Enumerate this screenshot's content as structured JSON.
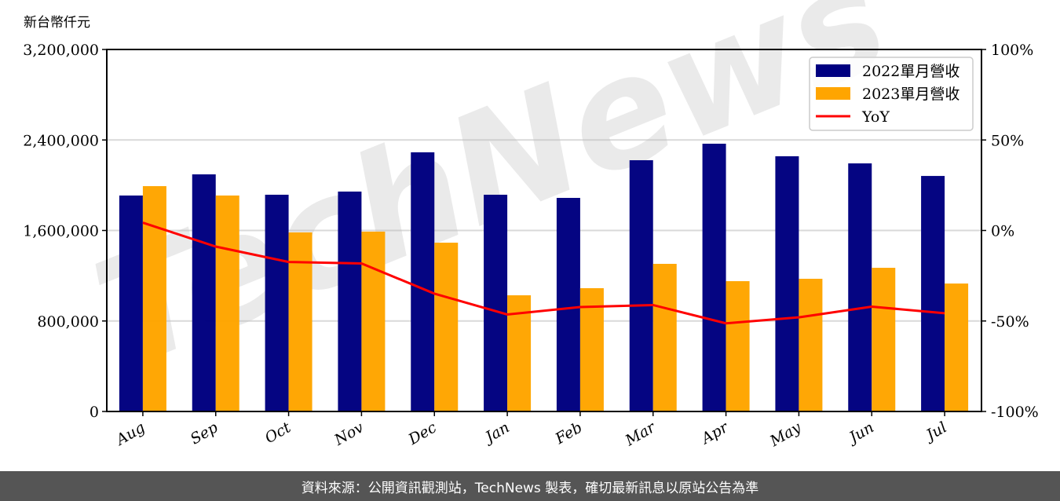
{
  "unit_label": "新台幣仟元",
  "footer": {
    "text": "資料來源：公開資訊觀測站，TechNews 製表，確切最新訊息以原站公告為準"
  },
  "watermark": "TechNews",
  "colors": {
    "series_2022": "#000080",
    "series_2023": "#FFA500",
    "yoy": "#FF0000",
    "grid": "#d9d9d9",
    "footer_bg": "#555555"
  },
  "chart_data": {
    "type": "bar",
    "title": "",
    "xlabel": "",
    "ylabel": "新台幣仟元",
    "y2label": "",
    "categories": [
      "Aug",
      "Sep",
      "Oct",
      "Nov",
      "Dec",
      "Jan",
      "Feb",
      "Mar",
      "Apr",
      "May",
      "Jun",
      "Jul"
    ],
    "series": [
      {
        "name": "2022單月營收",
        "type": "bar",
        "axis": "left",
        "color": "#000080",
        "values": [
          1909000,
          2096000,
          1916000,
          1944000,
          2291000,
          1916000,
          1888000,
          2221000,
          2367000,
          2256000,
          2193000,
          2082000
        ]
      },
      {
        "name": "2023單月營收",
        "type": "bar",
        "axis": "left",
        "color": "#FFA500",
        "values": [
          1992000,
          1909000,
          1583000,
          1590000,
          1492000,
          1027000,
          1090000,
          1305000,
          1152000,
          1173000,
          1270000,
          1131000
        ]
      },
      {
        "name": "YoY",
        "type": "line",
        "axis": "right",
        "color": "#FF0000",
        "values": [
          4.3,
          -8.9,
          -17.4,
          -18.2,
          -34.9,
          -46.4,
          -42.3,
          -41.2,
          -51.3,
          -48.0,
          -42.1,
          -45.7
        ]
      }
    ],
    "ylim": [
      0,
      3200000
    ],
    "yticks": [
      0,
      800000,
      1600000,
      2400000,
      3200000
    ],
    "ytick_labels": [
      "0",
      "800,000",
      "1,600,000",
      "2,400,000",
      "3,200,000"
    ],
    "y2lim": [
      -100,
      100
    ],
    "y2ticks": [
      -100,
      -50,
      0,
      50,
      100
    ],
    "y2tick_labels": [
      "-100%",
      "-50%",
      "0%",
      "50%",
      "100%"
    ],
    "grid": true,
    "legend_position": "upper right",
    "legend": [
      "2022單月營收",
      "2023單月營收",
      "YoY"
    ]
  }
}
